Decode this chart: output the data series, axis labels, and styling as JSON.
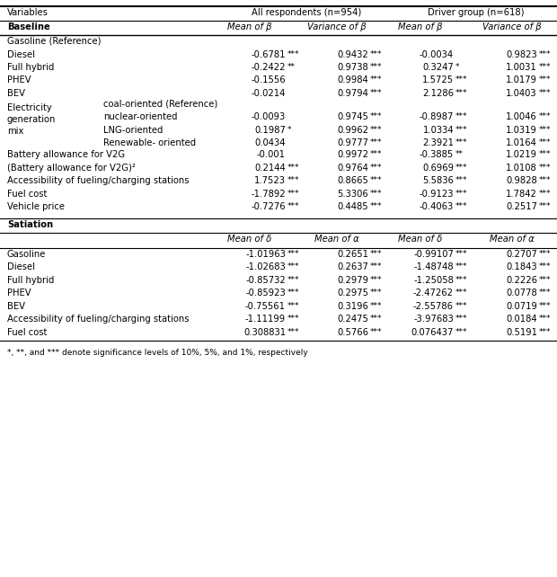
{
  "title_row": [
    "Variables",
    "All respondents (n=954)",
    "",
    "Driver group (n=618)",
    ""
  ],
  "header_row": [
    "",
    "Mean of β",
    "Variance of β",
    "Mean of β",
    "Variance of β"
  ],
  "section1_label": "Baseline",
  "rows_baseline": [
    {
      "label": "Gasoline (Reference)",
      "sub": "",
      "c1": "",
      "c1s": "",
      "c2": "",
      "c2s": "",
      "c3": "",
      "c3s": "",
      "c4": "",
      "c4s": ""
    },
    {
      "label": "Diesel",
      "sub": "",
      "c1": "-0.6781",
      "c1s": "***",
      "c2": "0.9432",
      "c2s": "***",
      "c3": "-0.0034",
      "c3s": "",
      "c4": "0.9823",
      "c4s": "***"
    },
    {
      "label": "Full hybrid",
      "sub": "",
      "c1": "-0.2422",
      "c1s": "**",
      "c2": "0.9738",
      "c2s": "***",
      "c3": "0.3247",
      "c3s": "*",
      "c4": "1.0031",
      "c4s": "***"
    },
    {
      "label": "PHEV",
      "sub": "",
      "c1": "-0.1556",
      "c1s": "",
      "c2": "0.9984",
      "c2s": "***",
      "c3": "1.5725",
      "c3s": "***",
      "c4": "1.0179",
      "c4s": "***"
    },
    {
      "label": "BEV",
      "sub": "",
      "c1": "-0.0214",
      "c1s": "",
      "c2": "0.9794",
      "c2s": "***",
      "c3": "2.1286",
      "c3s": "***",
      "c4": "1.0403",
      "c4s": "***"
    }
  ],
  "rows_electricity": [
    {
      "label": "coal-oriented (Reference)",
      "sub": "",
      "c1": "",
      "c1s": "",
      "c2": "",
      "c2s": "",
      "c3": "",
      "c3s": "",
      "c4": "",
      "c4s": ""
    },
    {
      "label": "nuclear-oriented",
      "sub": "",
      "c1": "-0.0093",
      "c1s": "",
      "c2": "0.9745",
      "c2s": "***",
      "c3": "-0.8987",
      "c3s": "***",
      "c4": "1.0046",
      "c4s": "***"
    },
    {
      "label": "LNG-oriented",
      "sub": "",
      "c1": "0.1987",
      "c1s": "*",
      "c2": "0.9962",
      "c2s": "***",
      "c3": "1.0334",
      "c3s": "***",
      "c4": "1.0319",
      "c4s": "***"
    },
    {
      "label": "Renewable- oriented",
      "sub": "",
      "c1": "0.0434",
      "c1s": "",
      "c2": "0.9777",
      "c2s": "***",
      "c3": "2.3921",
      "c3s": "***",
      "c4": "1.0164",
      "c4s": "***"
    }
  ],
  "rows_other": [
    {
      "label": "Battery allowance for V2G",
      "sub": "",
      "c1": "-0.001",
      "c1s": "",
      "c2": "0.9972",
      "c2s": "***",
      "c3": "-0.3885",
      "c3s": "**",
      "c4": "1.0219",
      "c4s": "***"
    },
    {
      "label": "(Battery allowance for V2G)²",
      "sub": "",
      "c1": "0.2144",
      "c1s": "***",
      "c2": "0.9764",
      "c2s": "***",
      "c3": "0.6969",
      "c3s": "***",
      "c4": "1.0108",
      "c4s": "***"
    },
    {
      "label": "Accessibility of fueling/charging stations",
      "sub": "",
      "c1": "1.7523",
      "c1s": "***",
      "c2": "0.8665",
      "c2s": "***",
      "c3": "5.5836",
      "c3s": "***",
      "c4": "0.9828",
      "c4s": "***"
    },
    {
      "label": "Fuel cost",
      "sub": "",
      "c1": "-1.7892",
      "c1s": "***",
      "c2": "5.3306",
      "c2s": "***",
      "c3": "-0.9123",
      "c3s": "***",
      "c4": "1.7842",
      "c4s": "***"
    },
    {
      "label": "Vehicle price",
      "sub": "",
      "c1": "-0.7276",
      "c1s": "***",
      "c2": "0.4485",
      "c2s": "***",
      "c3": "-0.4063",
      "c3s": "***",
      "c4": "0.2517",
      "c4s": "***"
    }
  ],
  "section2_label": "Satiation",
  "header_row2": [
    "",
    "Mean of δ",
    "Mean of α",
    "Mean of δ",
    "Mean of α"
  ],
  "rows_satiation": [
    {
      "label": "Gasoline",
      "c1": "-1.01963",
      "c1s": "***",
      "c2": "0.2651",
      "c2s": "***",
      "c3": "-0.99107",
      "c3s": "***",
      "c4": "0.2707",
      "c4s": "***"
    },
    {
      "label": "Diesel",
      "c1": "-1.02683",
      "c1s": "***",
      "c2": "0.2637",
      "c2s": "***",
      "c3": "-1.48748",
      "c3s": "***",
      "c4": "0.1843",
      "c4s": "***"
    },
    {
      "label": "Full hybrid",
      "c1": "-0.85732",
      "c1s": "***",
      "c2": "0.2979",
      "c2s": "***",
      "c3": "-1.25058",
      "c3s": "***",
      "c4": "0.2226",
      "c4s": "***"
    },
    {
      "label": "PHEV",
      "c1": "-0.85923",
      "c1s": "***",
      "c2": "0.2975",
      "c2s": "***",
      "c3": "-2.47262",
      "c3s": "***",
      "c4": "0.0778",
      "c4s": "***"
    },
    {
      "label": "BEV",
      "c1": "-0.75561",
      "c1s": "***",
      "c2": "0.3196",
      "c2s": "***",
      "c3": "-2.55786",
      "c3s": "***",
      "c4": "0.0719",
      "c4s": "***"
    },
    {
      "label": "Accessibility of fueling/charging stations",
      "c1": "-1.11199",
      "c1s": "***",
      "c2": "0.2475",
      "c2s": "***",
      "c3": "-3.97683",
      "c3s": "***",
      "c4": "0.0184",
      "c4s": "***"
    },
    {
      "label": "Fuel cost",
      "c1": "0.308831",
      "c1s": "***",
      "c2": "0.5766",
      "c2s": "***",
      "c3": "0.076437",
      "c3s": "***",
      "c4": "0.5191",
      "c4s": "***"
    }
  ],
  "footnote": "*, **, and *** denote significance levels of 10%, 5%, and 1%, respectively"
}
